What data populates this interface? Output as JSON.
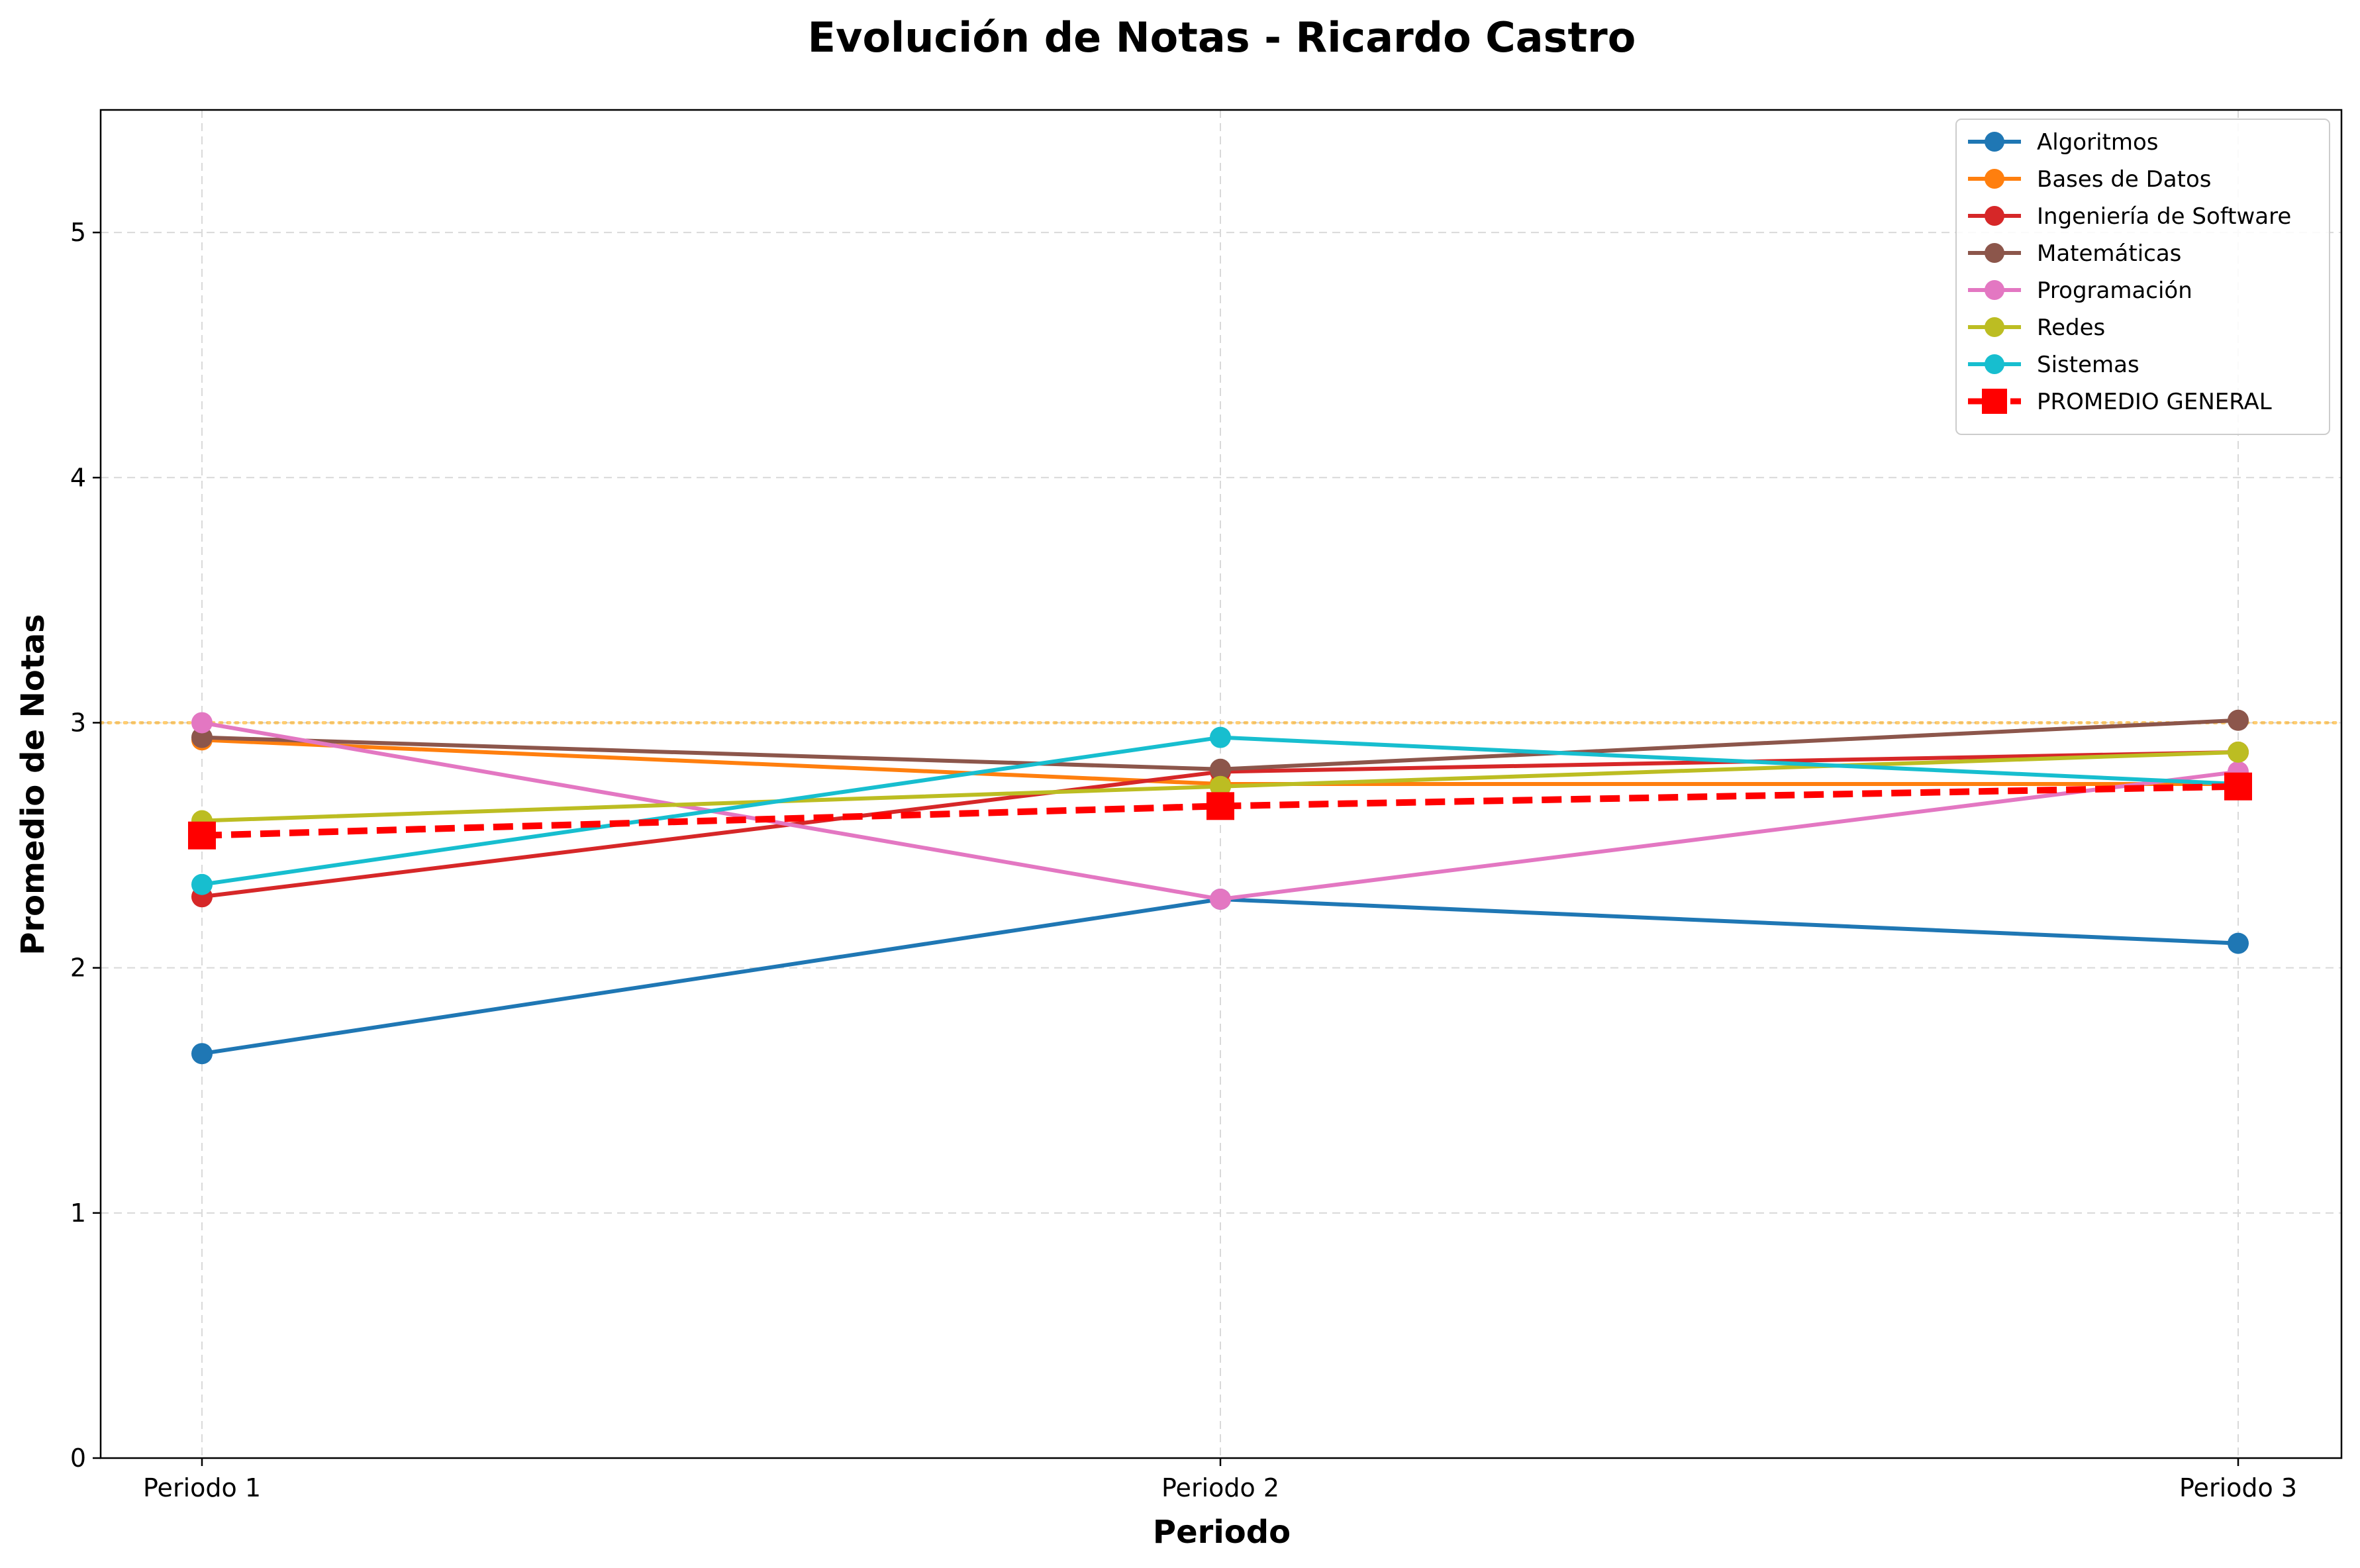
{
  "chart_data": {
    "type": "line",
    "title": "Evolución de Notas - Ricardo Castro",
    "xlabel": "Periodo",
    "ylabel": "Promedio de Notas",
    "categories": [
      "Periodo 1",
      "Periodo 2",
      "Periodo 3"
    ],
    "ylim": [
      0,
      5.5
    ],
    "yticks": [
      "0",
      "1",
      "2",
      "3",
      "4",
      "5"
    ],
    "grid": true,
    "legend_position": "top-right",
    "reference_line": {
      "y": 3.0,
      "color": "#ffa500",
      "style": "dotted"
    },
    "series": [
      {
        "name": "Algoritmos",
        "color": "#1f77b4",
        "values": [
          1.65,
          2.28,
          2.1
        ]
      },
      {
        "name": "Bases de Datos",
        "color": "#ff7f0e",
        "values": [
          2.93,
          2.75,
          2.75
        ]
      },
      {
        "name": "Ingeniería de Software",
        "color": "#d62728",
        "values": [
          2.29,
          2.8,
          2.88
        ]
      },
      {
        "name": "Matemáticas",
        "color": "#8c564b",
        "values": [
          2.94,
          2.81,
          3.01
        ]
      },
      {
        "name": "Programación",
        "color": "#e377c2",
        "values": [
          3.0,
          2.28,
          2.8
        ]
      },
      {
        "name": "Redes",
        "color": "#bcbd22",
        "values": [
          2.6,
          2.74,
          2.88
        ]
      },
      {
        "name": "Sistemas",
        "color": "#17becf",
        "values": [
          2.34,
          2.94,
          2.75
        ]
      },
      {
        "name": "PROMEDIO GENERAL",
        "color": "#ff0000",
        "values": [
          2.54,
          2.66,
          2.74
        ],
        "marker": "square",
        "dashed": true
      }
    ]
  }
}
